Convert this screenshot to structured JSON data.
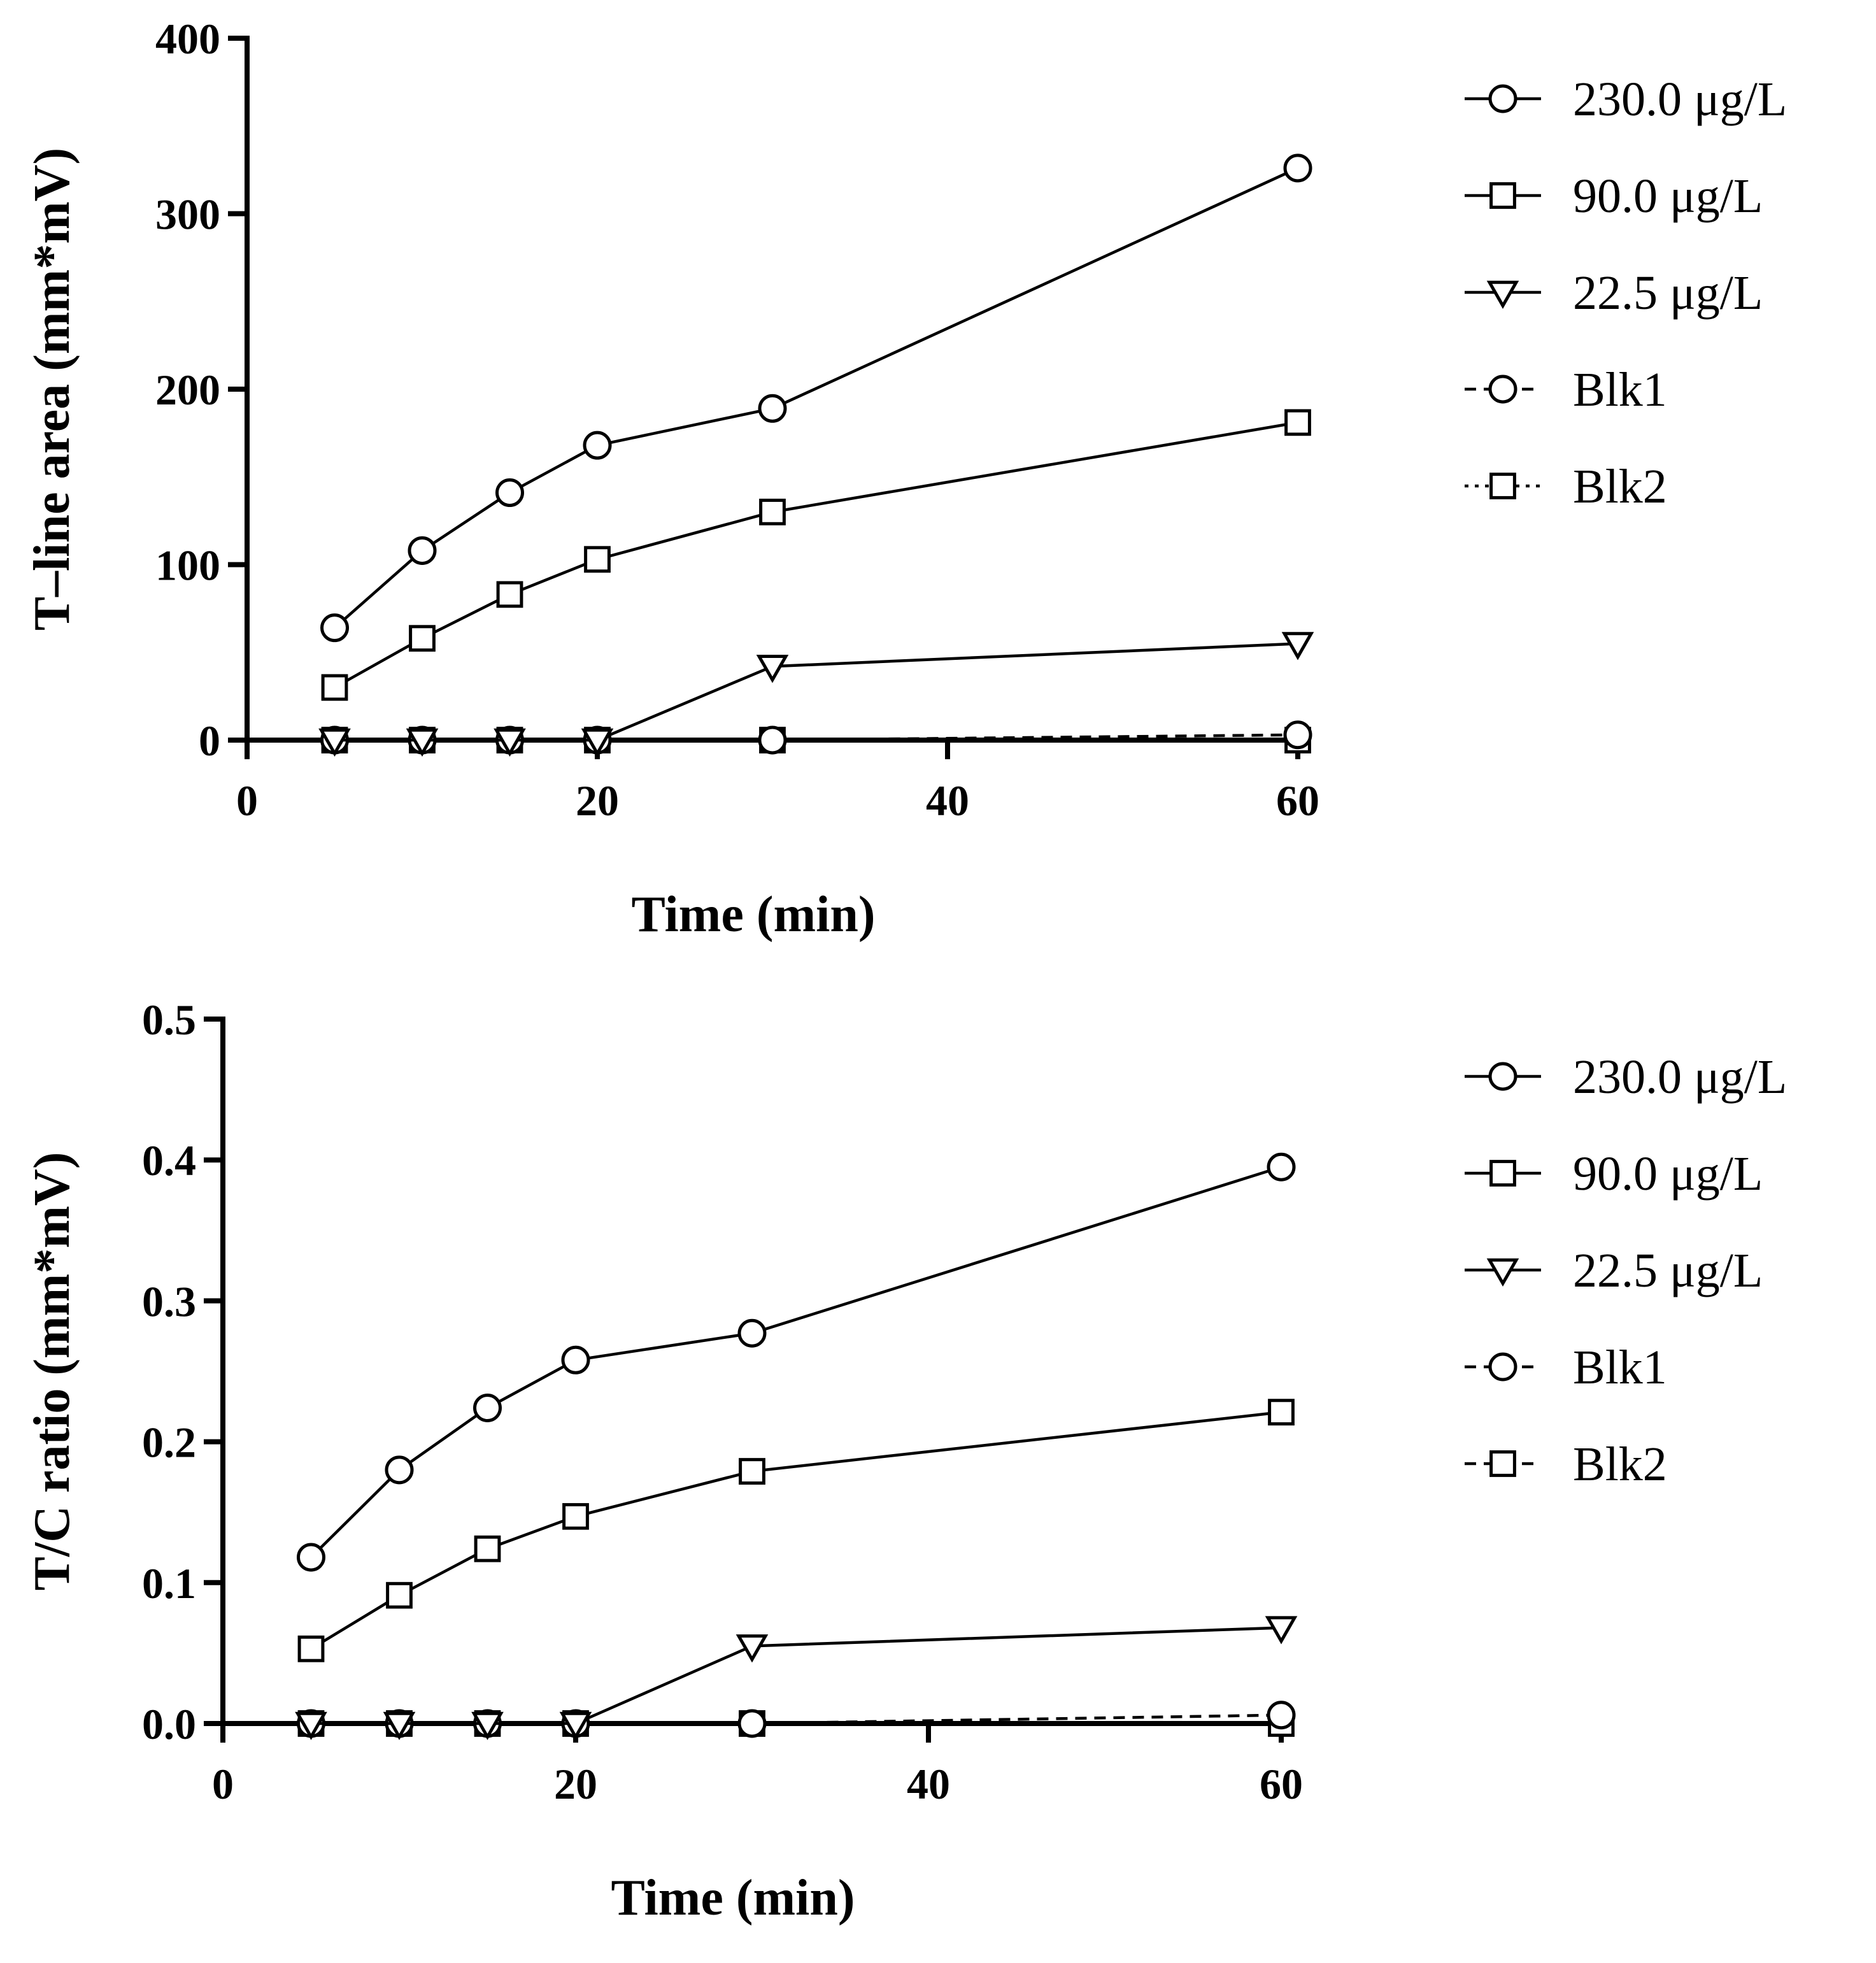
{
  "chart_data": [
    {
      "type": "line",
      "title": "",
      "xlabel": "Time (min)",
      "ylabel": "T–line area (mm*mV)",
      "xlim": [
        0,
        60
      ],
      "ylim": [
        0,
        400
      ],
      "xticks": [
        "0",
        "20",
        "40",
        "60"
      ],
      "yticks": [
        "0",
        "100",
        "200",
        "300",
        "400"
      ],
      "grid": false,
      "legend_position": "right",
      "series": [
        {
          "name": "230.0 μg/L",
          "marker": "circle",
          "line": "solid",
          "x": [
            5,
            10,
            15,
            20,
            30,
            60
          ],
          "values": [
            64,
            108,
            141,
            168,
            189,
            326
          ]
        },
        {
          "name": "90.0 μg/L",
          "marker": "square",
          "line": "solid",
          "x": [
            5,
            10,
            15,
            20,
            30,
            60
          ],
          "values": [
            30,
            58,
            83,
            103,
            130,
            181
          ]
        },
        {
          "name": "22.5 μg/L",
          "marker": "triangle-down",
          "line": "solid",
          "x": [
            5,
            10,
            15,
            20,
            30,
            60
          ],
          "values": [
            0,
            0,
            0,
            0,
            42,
            55
          ]
        },
        {
          "name": "Blk1",
          "marker": "circle",
          "line": "dashed",
          "x": [
            5,
            10,
            15,
            20,
            30,
            60
          ],
          "values": [
            0,
            0,
            0,
            0,
            0,
            3
          ]
        },
        {
          "name": "Blk2",
          "marker": "square",
          "line": "dotted",
          "x": [
            5,
            10,
            15,
            20,
            30,
            60
          ],
          "values": [
            0,
            0,
            0,
            0,
            0,
            0
          ]
        }
      ]
    },
    {
      "type": "line",
      "title": "",
      "xlabel": "Time (min)",
      "ylabel": "T/C ratio (mm*mV)",
      "xlim": [
        0,
        60
      ],
      "ylim": [
        0,
        0.5
      ],
      "xticks": [
        "0",
        "20",
        "40",
        "60"
      ],
      "yticks": [
        "0.0",
        "0.1",
        "0.2",
        "0.3",
        "0.4",
        "0.5"
      ],
      "grid": false,
      "legend_position": "right",
      "series": [
        {
          "name": "230.0 μg/L",
          "marker": "circle",
          "line": "solid",
          "x": [
            5,
            10,
            15,
            20,
            30,
            60
          ],
          "values": [
            0.118,
            0.18,
            0.224,
            0.258,
            0.277,
            0.395
          ]
        },
        {
          "name": "90.0 μg/L",
          "marker": "square",
          "line": "solid",
          "x": [
            5,
            10,
            15,
            20,
            30,
            60
          ],
          "values": [
            0.053,
            0.091,
            0.124,
            0.147,
            0.179,
            0.221
          ]
        },
        {
          "name": "22.5 μg/L",
          "marker": "triangle-down",
          "line": "solid",
          "x": [
            5,
            10,
            15,
            20,
            30,
            60
          ],
          "values": [
            0,
            0,
            0,
            0,
            0.055,
            0.068
          ]
        },
        {
          "name": "Blk1",
          "marker": "circle",
          "line": "dashed",
          "x": [
            5,
            10,
            15,
            20,
            30,
            60
          ],
          "values": [
            0,
            0,
            0,
            0,
            0,
            0.006
          ]
        },
        {
          "name": "Blk2",
          "marker": "square",
          "line": "dashed",
          "x": [
            5,
            10,
            15,
            20,
            30,
            60
          ],
          "values": [
            0,
            0,
            0,
            0,
            0,
            0
          ]
        }
      ]
    }
  ]
}
